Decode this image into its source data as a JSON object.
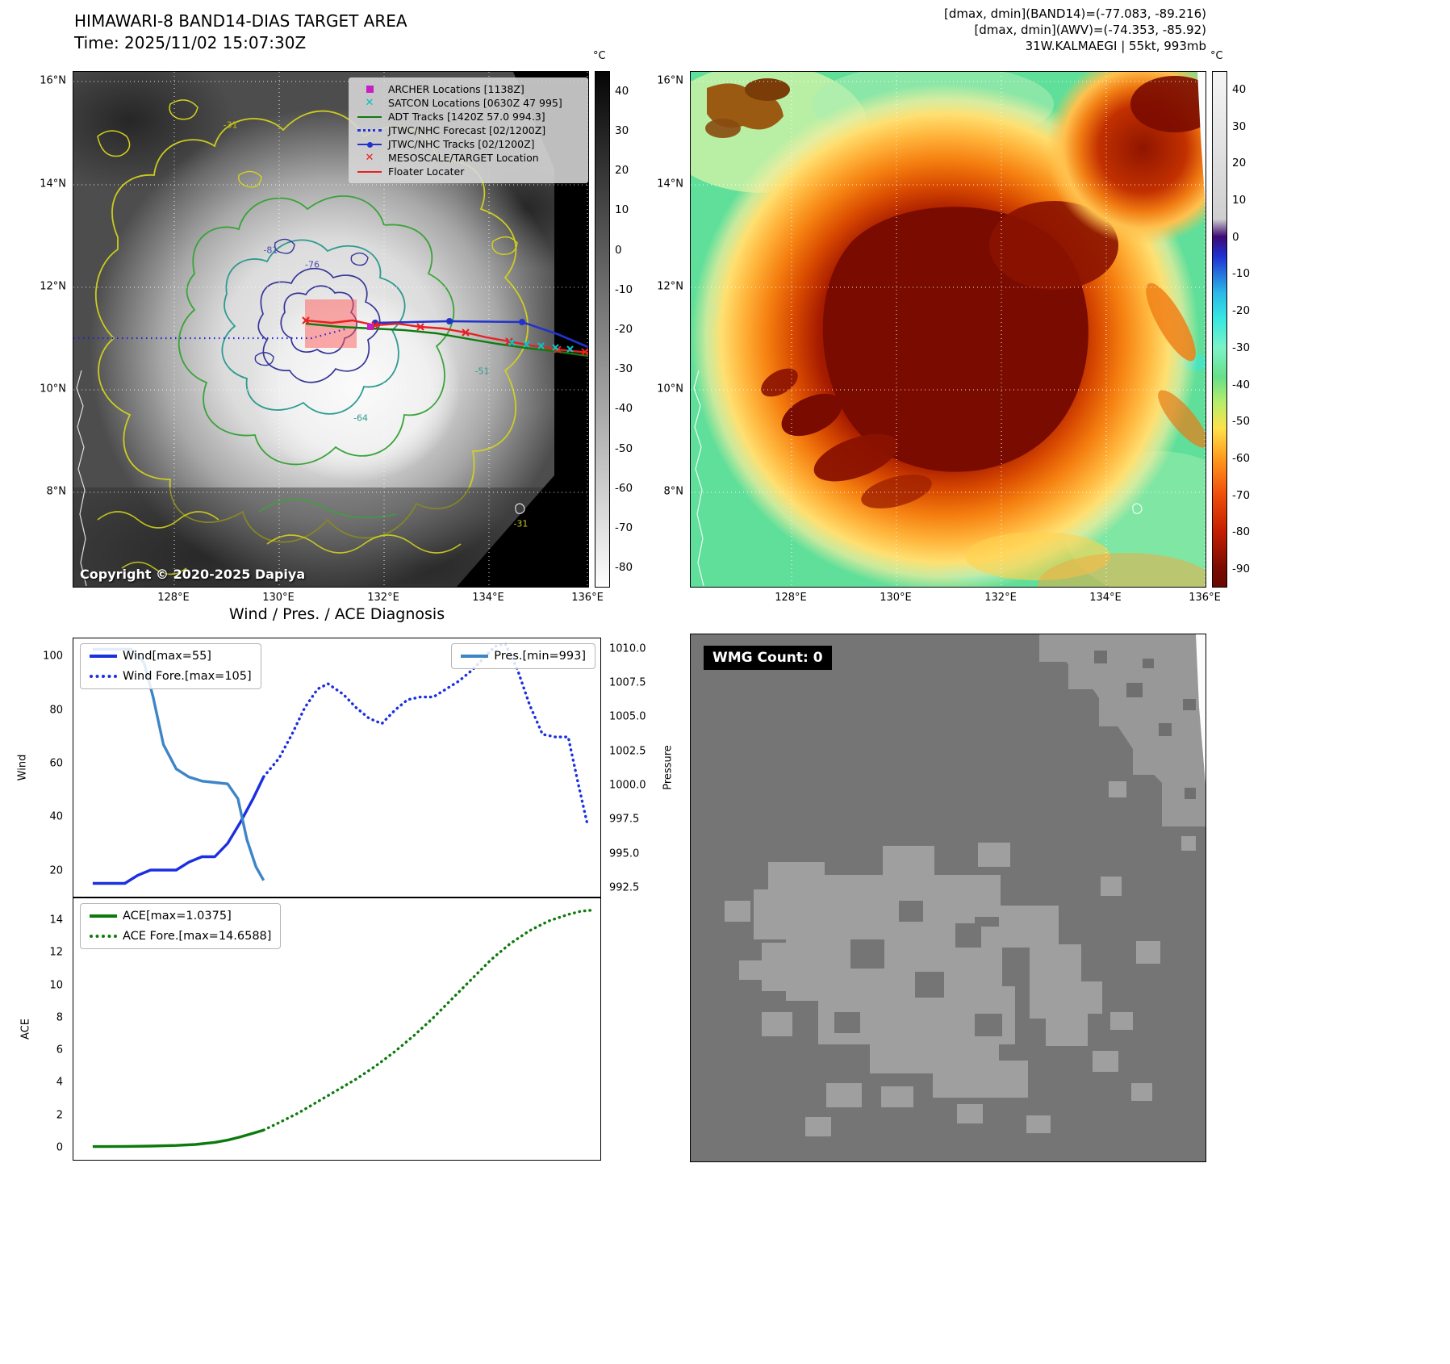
{
  "panel_band14": {
    "title": "HIMAWARI-8 BAND14-DIAS TARGET AREA",
    "time_line": "Time: 2025/11/02 15:07:30Z",
    "copyright": "Copyright © 2020-2025 Dapiya",
    "colorbar_unit": "°C",
    "colorbar_ticks": [
      "40",
      "30",
      "20",
      "10",
      "0",
      "-10",
      "-20",
      "-30",
      "-40",
      "-50",
      "-60",
      "-70",
      "-80"
    ],
    "x_ticks": [
      "128°E",
      "130°E",
      "132°E",
      "134°E",
      "136°E"
    ],
    "y_ticks": [
      "16°N",
      "14°N",
      "12°N",
      "10°N",
      "8°N"
    ],
    "contour_labels": [
      "-31",
      "-81",
      "-76",
      "-64",
      "-51",
      "-31"
    ],
    "legend": [
      {
        "label": "ARCHER Locations [1138Z]",
        "marker": "magenta-square"
      },
      {
        "label": "SATCON Locations [0630Z 47 995]",
        "marker": "cyan-x"
      },
      {
        "label": "ADT Tracks [1420Z 57.0 994.3]",
        "marker": "green-line"
      },
      {
        "label": "JTWC/NHC Forecast [02/1200Z]",
        "marker": "blue-dotted-line"
      },
      {
        "label": "JTWC/NHC Tracks [02/1200Z]",
        "marker": "blue-line-dot"
      },
      {
        "label": "MESOSCALE/TARGET Location",
        "marker": "red-x"
      },
      {
        "label": "Floater Locater",
        "marker": "red-line"
      }
    ]
  },
  "panel_awv": {
    "header_lines": [
      "[dmax, dmin](BAND14)=(-77.083, -89.216)",
      "[dmax, dmin](AWV)=(-74.353, -85.92)",
      "31W.KALMAEGI | 55kt, 993mb"
    ],
    "colorbar_unit": "°C",
    "colorbar_ticks": [
      "40",
      "30",
      "20",
      "10",
      "0",
      "-10",
      "-20",
      "-30",
      "-40",
      "-50",
      "-60",
      "-70",
      "-80",
      "-90"
    ],
    "x_ticks": [
      "128°E",
      "130°E",
      "132°E",
      "134°E",
      "136°E"
    ],
    "y_ticks": [
      "16°N",
      "14°N",
      "12°N",
      "10°N",
      "8°N"
    ]
  },
  "wmg_panel": {
    "count_label": "WMG Count: 0"
  },
  "chart_data": [
    {
      "type": "line",
      "title": "Wind / Pres. / ACE Diagnosis",
      "ylabel": "Wind",
      "ylabel_right": "Pressure",
      "xlim": [
        0,
        41
      ],
      "ylim": [
        10,
        107
      ],
      "ylim_right": [
        991.8,
        1010.8
      ],
      "yticks": [
        "20",
        "40",
        "60",
        "80",
        "100"
      ],
      "yticks_right": [
        "992.5",
        "995.0",
        "997.5",
        "1000.0",
        "1002.5",
        "1005.0",
        "1007.5",
        "1010.0"
      ],
      "legend_left": [
        "Wind[max=55]",
        "Wind Fore.[max=105]"
      ],
      "legend_right": [
        "Pres.[min=993]"
      ],
      "series": [
        {
          "name": "Wind[max=55]",
          "style": "solid",
          "color": "#1b2fe0",
          "axis": "left",
          "x": [
            1.5,
            3,
            4,
            5,
            6,
            7,
            8,
            9,
            10,
            11,
            12,
            13,
            14,
            14.8
          ],
          "values": [
            15,
            15,
            15,
            18,
            20,
            20,
            20,
            23,
            25,
            25,
            30,
            38,
            47,
            55
          ]
        },
        {
          "name": "Wind Fore.[max=105]",
          "style": "dotted",
          "color": "#1b2fe0",
          "axis": "left",
          "x": [
            14.8,
            16,
            17,
            18,
            19,
            19.8,
            21,
            22,
            23,
            24,
            25,
            26,
            27,
            28,
            29,
            30,
            31,
            32,
            32.8,
            33.6,
            34.5,
            35.5,
            36.5,
            37.5,
            38.5,
            39.3,
            40
          ],
          "values": [
            55,
            62,
            71,
            81,
            88,
            90,
            86,
            81,
            77,
            75,
            80,
            84,
            85,
            85,
            88,
            91,
            95,
            100,
            104,
            105,
            96,
            82,
            71,
            70,
            70,
            52,
            37
          ]
        },
        {
          "name": "Pres.[min=993]",
          "style": "solid",
          "color": "#3d85c6",
          "axis": "right",
          "x": [
            1.5,
            3,
            4.5,
            5.5,
            6.2,
            7,
            8,
            9,
            10,
            11,
            12,
            12.8,
            13.5,
            14.2,
            14.8
          ],
          "values": [
            1010,
            1010,
            1010,
            1009,
            1006.5,
            1003,
            1001.2,
            1000.6,
            1000.3,
            1000.2,
            1000.1,
            999,
            996,
            994,
            993
          ]
        }
      ]
    },
    {
      "type": "line",
      "ylabel": "ACE",
      "xlim": [
        0,
        41
      ],
      "ylim": [
        -0.8,
        15.4
      ],
      "yticks": [
        "0",
        "2",
        "4",
        "6",
        "8",
        "10",
        "12",
        "14"
      ],
      "legend_left": [
        "ACE[max=1.0375]",
        "ACE Fore.[max=14.6588]"
      ],
      "series": [
        {
          "name": "ACE[max=1.0375]",
          "style": "solid",
          "color": "#0d7a0d",
          "axis": "left",
          "x": [
            1.5,
            4,
            6,
            8,
            9.5,
            11,
            12,
            13,
            14,
            14.8
          ],
          "values": [
            0.02,
            0.03,
            0.05,
            0.09,
            0.15,
            0.28,
            0.42,
            0.62,
            0.85,
            1.04
          ]
        },
        {
          "name": "ACE Fore.[max=14.6588]",
          "style": "dotted",
          "color": "#0d7a0d",
          "axis": "left",
          "x": [
            14.8,
            16,
            17.5,
            19,
            20.5,
            22,
            23.5,
            25,
            26.5,
            28,
            29.5,
            31,
            32.5,
            34,
            35.5,
            37,
            38.5,
            39.5,
            40.3
          ],
          "values": [
            1.04,
            1.5,
            2.1,
            2.8,
            3.5,
            4.2,
            5.0,
            5.9,
            6.9,
            8.0,
            9.2,
            10.4,
            11.6,
            12.6,
            13.4,
            14.0,
            14.4,
            14.6,
            14.66
          ]
        }
      ]
    }
  ]
}
